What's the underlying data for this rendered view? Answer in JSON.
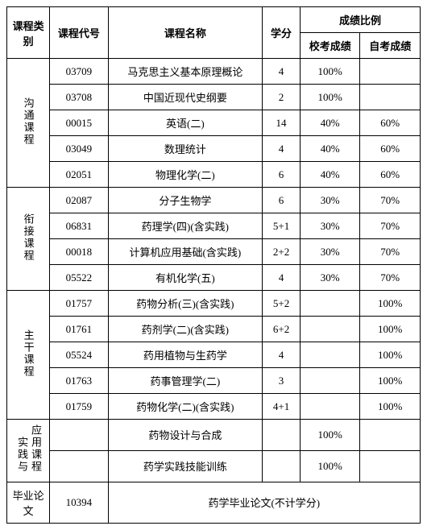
{
  "headers": {
    "category": "课程类别",
    "code": "课程代号",
    "name": "课程名称",
    "credit": "学分",
    "score_ratio": "成绩比例",
    "school_score": "校考成绩",
    "self_score": "自考成绩"
  },
  "categories": {
    "cat1": "沟通课程",
    "cat2": "衔接课程",
    "cat3": "主干课程",
    "cat4a": "实践与",
    "cat4b": "应用课程",
    "cat5": "毕业论文"
  },
  "rows": [
    {
      "code": "03709",
      "name": "马克思主义基本原理概论",
      "credit": "4",
      "s1": "100%",
      "s2": ""
    },
    {
      "code": "03708",
      "name": "中国近现代史纲要",
      "credit": "2",
      "s1": "100%",
      "s2": ""
    },
    {
      "code": "00015",
      "name": "英语(二)",
      "credit": "14",
      "s1": "40%",
      "s2": "60%"
    },
    {
      "code": "03049",
      "name": "数理统计",
      "credit": "4",
      "s1": "40%",
      "s2": "60%"
    },
    {
      "code": "02051",
      "name": "物理化学(二)",
      "credit": "6",
      "s1": "40%",
      "s2": "60%"
    },
    {
      "code": "02087",
      "name": "分子生物学",
      "credit": "6",
      "s1": "30%",
      "s2": "70%"
    },
    {
      "code": "06831",
      "name": "药理学(四)(含实践)",
      "credit": "5+1",
      "s1": "30%",
      "s2": "70%"
    },
    {
      "code": "00018",
      "name": "计算机应用基础(含实践)",
      "credit": "2+2",
      "s1": "30%",
      "s2": "70%"
    },
    {
      "code": "05522",
      "name": "有机化学(五)",
      "credit": "4",
      "s1": "30%",
      "s2": "70%"
    },
    {
      "code": "01757",
      "name": "药物分析(三)(含实践)",
      "credit": "5+2",
      "s1": "",
      "s2": "100%"
    },
    {
      "code": "01761",
      "name": "药剂学(二)(含实践)",
      "credit": "6+2",
      "s1": "",
      "s2": "100%"
    },
    {
      "code": "05524",
      "name": "药用植物与生药学",
      "credit": "4",
      "s1": "",
      "s2": "100%"
    },
    {
      "code": "01763",
      "name": "药事管理学(二)",
      "credit": "3",
      "s1": "",
      "s2": "100%"
    },
    {
      "code": "01759",
      "name": "药物化学(二)(含实践)",
      "credit": "4+1",
      "s1": "",
      "s2": "100%"
    },
    {
      "code": "",
      "name": "药物设计与合成",
      "credit": "",
      "s1": "100%",
      "s2": ""
    },
    {
      "code": "",
      "name": "药学实践技能训练",
      "credit": "",
      "s1": "100%",
      "s2": ""
    }
  ],
  "thesis": {
    "code": "10394",
    "text": "药学毕业论文(不计学分)"
  }
}
